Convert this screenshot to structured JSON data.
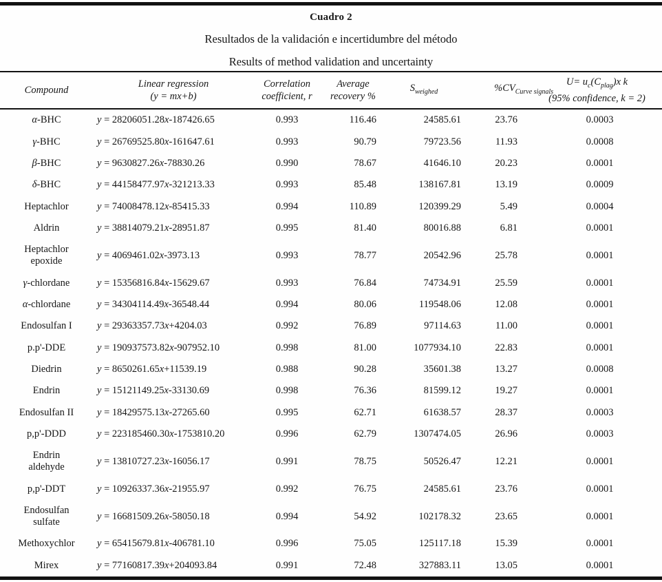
{
  "table": {
    "title": "Cuadro 2",
    "subtitle_es": "Resultados de la validación e incertidumbre del método",
    "subtitle_en": "Results of method validation and uncertainty",
    "headers": {
      "compound": "Compound",
      "linear_regression_line1": "Linear regression",
      "linear_regression_line2": "(y = mx+b)",
      "correlation_line1": "Correlation",
      "correlation_line2": "coefficient, r",
      "recovery_line1": "Average",
      "recovery_line2": "recovery %",
      "s_base": "S",
      "s_sub": "weighed",
      "cv_base": "%CV",
      "cv_sub": "Curve signals",
      "u_part1": "U= u",
      "u_sub1": "c",
      "u_part2": "(C",
      "u_sub2": "plag",
      "u_part3": ")x k",
      "u_line2": "(95% confidence, k = 2)"
    },
    "rows": [
      {
        "compound": "α-BHC",
        "m": "28206051.28",
        "b": "-187426.65",
        "r": "0.993",
        "recovery": "116.46",
        "s_weighed": "24585.61",
        "cv": "23.76",
        "u": "0.0003"
      },
      {
        "compound": "γ-BHC",
        "m": "26769525.80",
        "b": "-161647.61",
        "r": "0.993",
        "recovery": "90.79",
        "s_weighed": "79723.56",
        "cv": "11.93",
        "u": "0.0008"
      },
      {
        "compound": "β-BHC",
        "m": "9630827.26",
        "b": "-78830.26",
        "r": "0.990",
        "recovery": "78.67",
        "s_weighed": "41646.10",
        "cv": "20.23",
        "u": "0.0001"
      },
      {
        "compound": "δ-BHC",
        "m": "44158477.97",
        "b": "-321213.33",
        "r": "0.993",
        "recovery": "85.48",
        "s_weighed": "138167.81",
        "cv": "13.19",
        "u": "0.0009"
      },
      {
        "compound": "Heptachlor",
        "m": "74008478.12",
        "b": "-85415.33",
        "r": "0.994",
        "recovery": "110.89",
        "s_weighed": "120399.29",
        "cv": "5.49",
        "u": "0.0004"
      },
      {
        "compound": "Aldrin",
        "m": "38814079.21",
        "b": "-28951.87",
        "r": "0.995",
        "recovery": "81.40",
        "s_weighed": "80016.88",
        "cv": "6.81",
        "u": "0.0001"
      },
      {
        "compound": "Heptachlor\nepoxide",
        "m": "4069461.02",
        "b": "-3973.13",
        "r": "0.993",
        "recovery": "78.77",
        "s_weighed": "20542.96",
        "cv": "25.78",
        "u": "0.0001"
      },
      {
        "compound": "γ-chlordane",
        "m": "15356816.84",
        "b": "-15629.67",
        "r": "0.993",
        "recovery": "76.84",
        "s_weighed": "74734.91",
        "cv": "25.59",
        "u": "0.0001"
      },
      {
        "compound": "α-chlordane",
        "m": "34304114.49",
        "b": "-36548.44",
        "r": "0.994",
        "recovery": "80.06",
        "s_weighed": "119548.06",
        "cv": "12.08",
        "u": "0.0001"
      },
      {
        "compound": "Endosulfan I",
        "m": "29363357.73",
        "b": "+4204.03",
        "r": "0.992",
        "recovery": "76.89",
        "s_weighed": "97114.63",
        "cv": "11.00",
        "u": "0.0001"
      },
      {
        "compound": "p.p'-DDE",
        "m": "190937573.82",
        "b": "-907952.10",
        "r": "0.998",
        "recovery": "81.00",
        "s_weighed": "1077934.10",
        "cv": "22.83",
        "u": "0.0001"
      },
      {
        "compound": "Diedrin",
        "m": "8650261.65",
        "b": "+11539.19",
        "r": "0.988",
        "recovery": "90.28",
        "s_weighed": "35601.38",
        "cv": "13.27",
        "u": "0.0008"
      },
      {
        "compound": "Endrin",
        "m": "15121149.25",
        "b": "-33130.69",
        "r": "0.998",
        "recovery": "76.36",
        "s_weighed": "81599.12",
        "cv": "19.27",
        "u": "0.0001"
      },
      {
        "compound": "Endosulfan II",
        "m": "18429575.13",
        "b": "-27265.60",
        "r": "0.995",
        "recovery": "62.71",
        "s_weighed": "61638.57",
        "cv": "28.37",
        "u": "0.0003"
      },
      {
        "compound": "p,p'-DDD",
        "m": "223185460.30",
        "b": "-1753810.20",
        "r": "0.996",
        "recovery": "62.79",
        "s_weighed": "1307474.05",
        "cv": "26.96",
        "u": "0.0003"
      },
      {
        "compound": "Endrin\naldehyde",
        "m": "13810727.23",
        "b": "-16056.17",
        "r": "0.991",
        "recovery": "78.75",
        "s_weighed": "50526.47",
        "cv": "12.21",
        "u": "0.0001"
      },
      {
        "compound": "p,p'-DDT",
        "m": "10926337.36",
        "b": "-21955.97",
        "r": "0.992",
        "recovery": "76.75",
        "s_weighed": "24585.61",
        "cv": "23.76",
        "u": "0.0001"
      },
      {
        "compound": "Endosulfan\nsulfate",
        "m": "16681509.26",
        "b": "-58050.18",
        "r": "0.994",
        "recovery": "54.92",
        "s_weighed": "102178.32",
        "cv": "23.65",
        "u": "0.0001"
      },
      {
        "compound": "Methoxychlor",
        "m": "65415679.81",
        "b": "-406781.10",
        "r": "0.996",
        "recovery": "75.05",
        "s_weighed": "125117.18",
        "cv": "15.39",
        "u": "0.0001"
      },
      {
        "compound": "Mirex",
        "m": "77160817.39",
        "b": "+204093.84",
        "r": "0.991",
        "recovery": "72.48",
        "s_weighed": "327883.11",
        "cv": "13.05",
        "u": "0.0001"
      }
    ]
  }
}
